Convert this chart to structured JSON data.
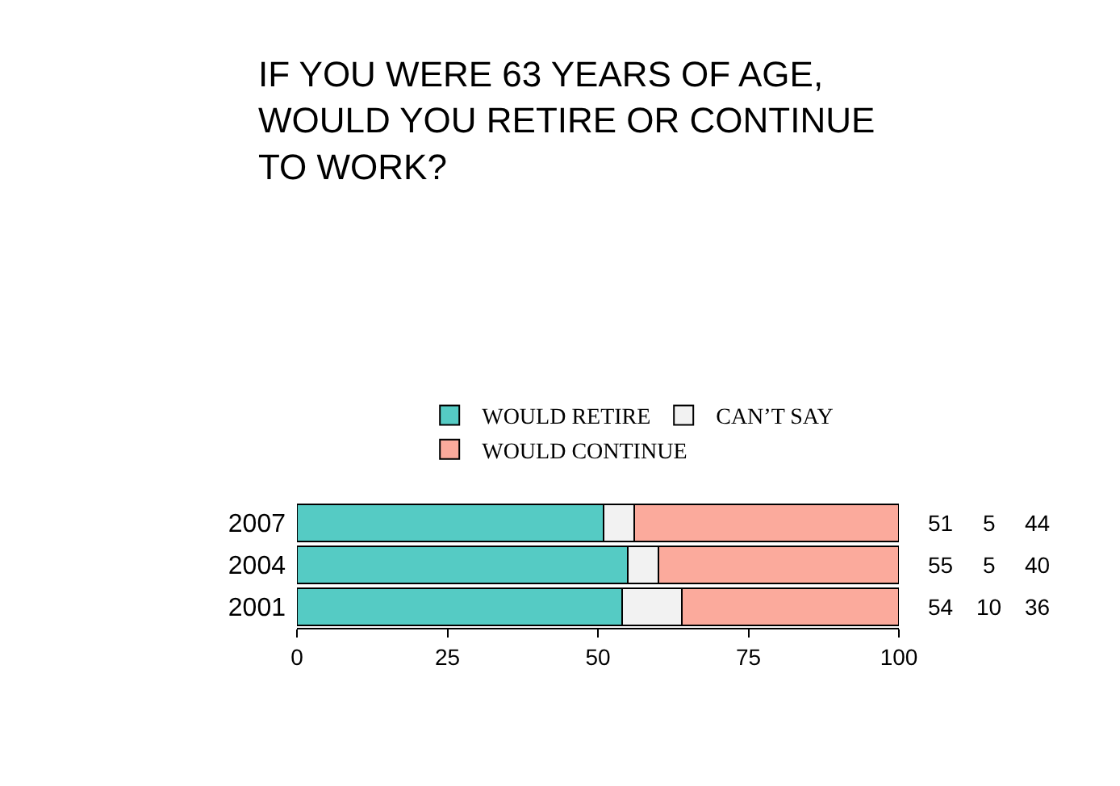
{
  "chart_data": {
    "type": "bar",
    "title": "IF YOU WERE 63 YEARS OF AGE, WOULD YOU RETIRE OR CONTINUE TO WORK?",
    "orientation": "horizontal",
    "stacked": true,
    "categories": [
      "2007",
      "2004",
      "2001"
    ],
    "series": [
      {
        "name": "WOULD RETIRE",
        "color": "#55cbc4",
        "values": [
          51,
          55,
          54
        ]
      },
      {
        "name": "CAN’T SAY",
        "color": "#f2f2f2",
        "values": [
          5,
          5,
          10
        ]
      },
      {
        "name": "WOULD CONTINUE",
        "color": "#fbaa9c",
        "values": [
          44,
          40,
          36
        ]
      }
    ],
    "xlim": [
      0,
      100
    ],
    "xticks": [
      0,
      25,
      50,
      75,
      100
    ],
    "grid": false,
    "legend": "top",
    "data_labels": true
  }
}
